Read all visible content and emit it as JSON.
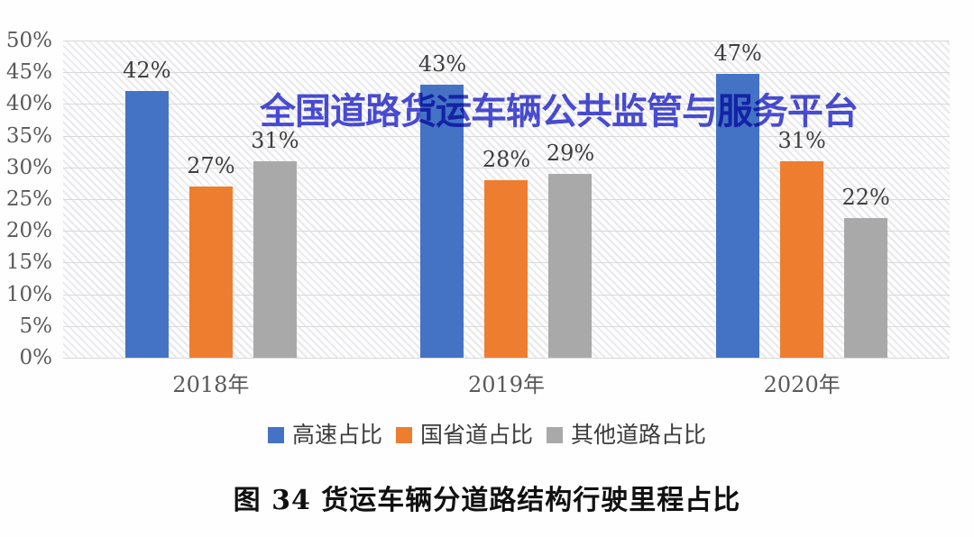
{
  "watermark": "全国道路货运车辆公共监管与服务平台",
  "caption": "图 34 货运车辆分道路结构行驶里程占比",
  "colors": {
    "series_blue": "#4473C5",
    "series_orange": "#EE7D30",
    "series_gray": "#A9A9A9",
    "gridline": "#d9d9d9",
    "axis_text": "#595959",
    "value_text": "#3e3e3e",
    "watermark_text": "#3A3ED3"
  },
  "chart_data": {
    "type": "bar",
    "title": "",
    "xlabel": "",
    "ylabel": "",
    "categories": [
      "2018年",
      "2019年",
      "2020年"
    ],
    "series": [
      {
        "name": "高速占比",
        "color": "#4473C5",
        "values": [
          42,
          43,
          47
        ]
      },
      {
        "name": "国省道占比",
        "color": "#EE7D30",
        "values": [
          27,
          28,
          31
        ]
      },
      {
        "name": "其他道路占比",
        "color": "#A9A9A9",
        "values": [
          31,
          29,
          22
        ]
      }
    ],
    "value_labels": [
      [
        "42%",
        "27%",
        "31%"
      ],
      [
        "43%",
        "28%",
        "29%"
      ],
      [
        "47%",
        "31%",
        "22%"
      ]
    ],
    "ylim": [
      0,
      50
    ],
    "ytick_step": 5,
    "ytick_labels": [
      "0%",
      "5%",
      "10%",
      "15%",
      "20%",
      "25%",
      "30%",
      "35%",
      "40%",
      "45%",
      "50%"
    ],
    "grid": true,
    "plot_background": "diagonal-hatch",
    "legend_position": "bottom"
  }
}
